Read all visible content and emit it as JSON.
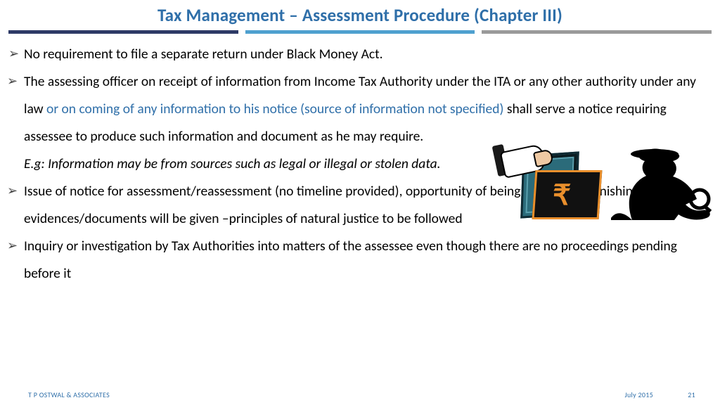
{
  "title": {
    "text": "Tax Management – Assessment Procedure (Chapter III)",
    "color": "#2f6fa9"
  },
  "divider": {
    "colors": [
      "#2e3a66",
      "#4ea0cf",
      "#9a9a9a"
    ]
  },
  "highlight_color": "#2f6fa9",
  "bullets": [
    {
      "segments": [
        {
          "t": " No requirement to file a separate return under Black Money Act."
        }
      ]
    },
    {
      "segments": [
        {
          "t": "The assessing officer on receipt of information from Income Tax Authority under the ITA or any other authority under any law "
        },
        {
          "t": "or on coming of any information to his notice (source of information not specified)",
          "hl": true
        },
        {
          "t": " shall serve a notice requiring assessee to produce such information and document as he may require."
        }
      ],
      "sub": "E.g: Information may be from sources such as legal or illegal or stolen data."
    },
    {
      "segments": [
        {
          "t": "Issue of notice for assessment/reassessment (no timeline provided), opportunity of being heard and furnishing of evidences/documents will be given –principles of natural justice to be followed"
        }
      ]
    },
    {
      "segments": [
        {
          "t": "Inquiry or investigation by Tax Authorities into matters of the assessee even though there are no proceedings pending before it"
        }
      ]
    }
  ],
  "footer": {
    "org": "T P OSTWAL & ASSOCIATES",
    "date": "July 2015",
    "page": "21",
    "color": "#2f6fa9"
  },
  "illustration": {
    "rupee_glyph": "₹",
    "safe_color": "#2b6b7a",
    "accent_color": "#e98f2c",
    "silhouette_color": "#000000"
  }
}
